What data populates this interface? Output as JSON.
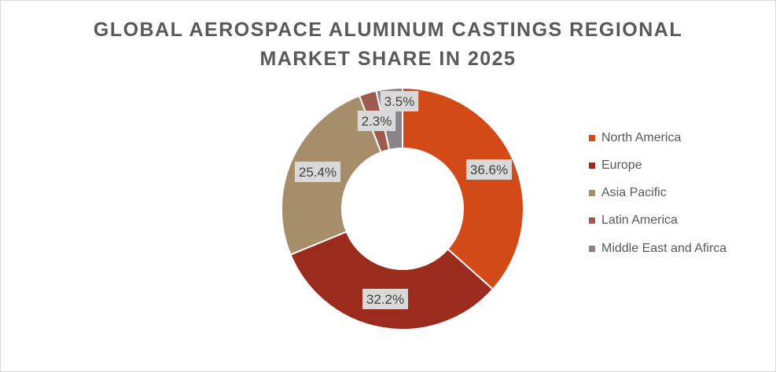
{
  "chart_data": {
    "type": "pie",
    "variant": "donut",
    "title": "GLOBAL AEROSPACE ALUMINUM CASTINGS REGIONAL MARKET SHARE IN 2025",
    "categories": [
      "North America",
      "Europe",
      "Asia Pacific",
      "Latin America",
      "Middle East and Afirca"
    ],
    "values": [
      36.6,
      32.2,
      25.4,
      2.3,
      3.5
    ],
    "data_labels": [
      "36.6%",
      "32.2%",
      "25.4%",
      "2.3%",
      "3.5%"
    ],
    "colors": [
      "#d24a17",
      "#9b2b1d",
      "#a68e6b",
      "#9e5a4c",
      "#8c8389"
    ],
    "legend_position": "right",
    "unit": "%"
  }
}
